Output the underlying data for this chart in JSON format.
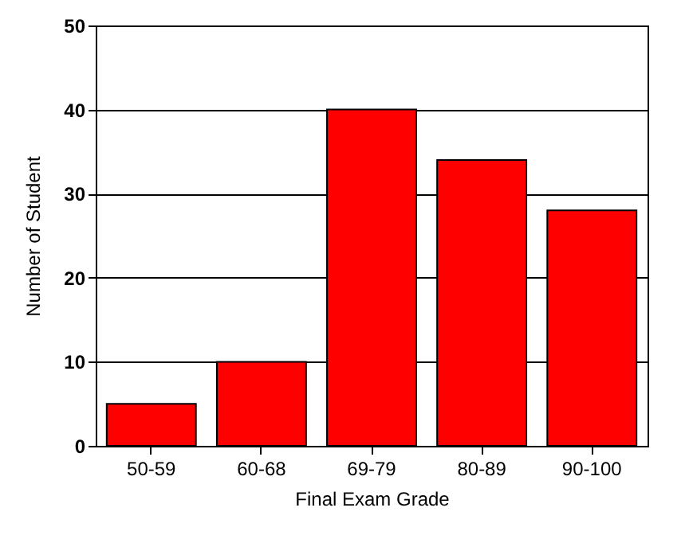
{
  "chart_data": {
    "type": "bar",
    "xlabel": "Final Exam Grade",
    "ylabel": "Number of Student",
    "categories": [
      "50-59",
      "60-68",
      "69-79",
      "80-89",
      "90-100"
    ],
    "values": [
      5,
      10,
      40,
      34,
      28
    ],
    "color": "#ff0000",
    "ylim": [
      0,
      50
    ],
    "yticks": [
      0,
      10,
      20,
      30,
      40,
      50
    ],
    "grid": "y"
  }
}
